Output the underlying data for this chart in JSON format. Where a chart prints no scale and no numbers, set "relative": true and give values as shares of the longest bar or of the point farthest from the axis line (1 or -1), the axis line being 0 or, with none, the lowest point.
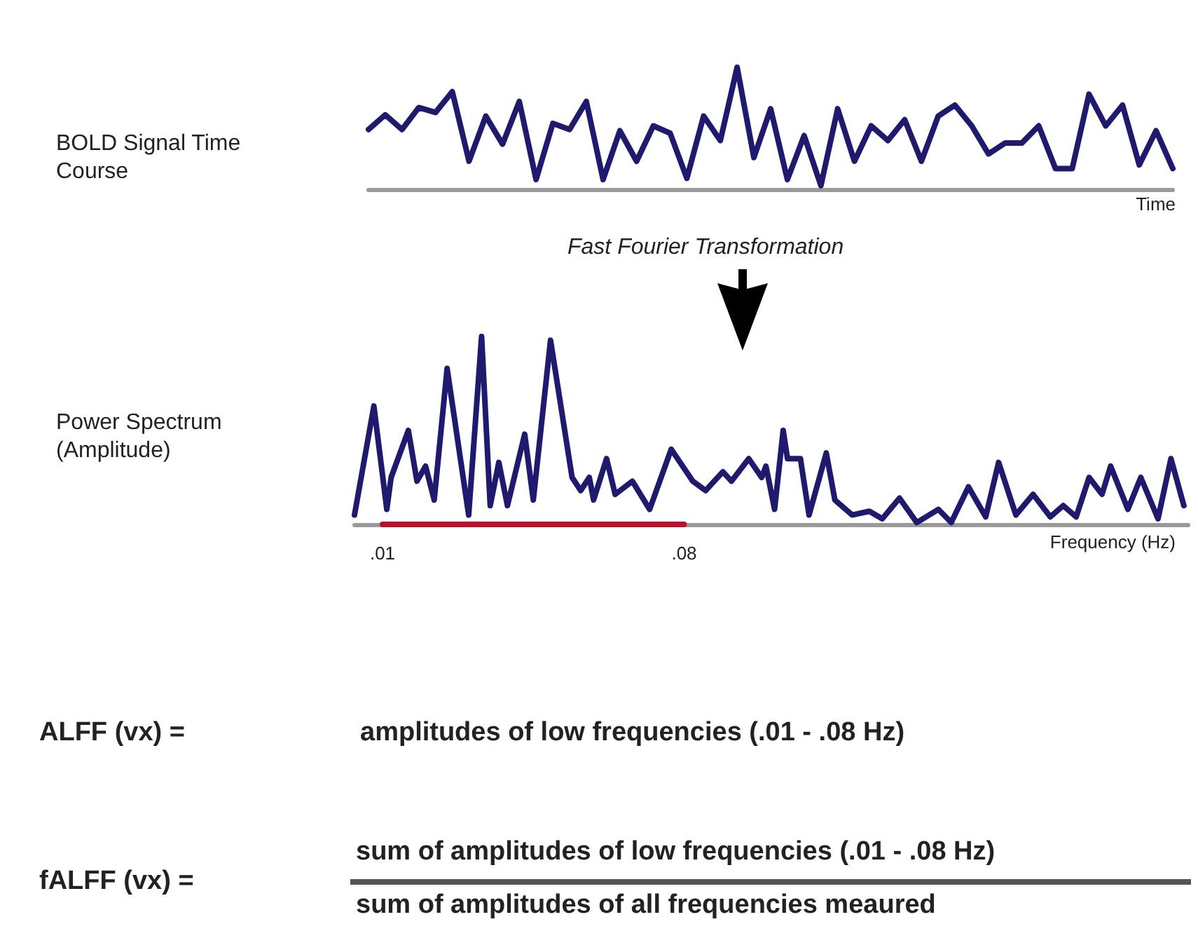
{
  "chart_data": [
    {
      "type": "line",
      "relative": true,
      "ylabel": "BOLD Signal Time Course",
      "xlabel": "Time",
      "categories": [
        null,
        null,
        null,
        null,
        null,
        null,
        null,
        null,
        null,
        null,
        null,
        null,
        null,
        null,
        null,
        null,
        null,
        null,
        null,
        null,
        null,
        null,
        null,
        null,
        null,
        null,
        null,
        null,
        null,
        null,
        null,
        null,
        null,
        null,
        null,
        null,
        null,
        null,
        null,
        null,
        null,
        null,
        null,
        null,
        null,
        null,
        null,
        null,
        null
      ],
      "series": [
        {
          "color": "#1f1a6e",
          "values": [
            0.49,
            0.61,
            0.49,
            0.67,
            0.63,
            0.8,
            0.23,
            0.6,
            0.37,
            0.72,
            0.08,
            0.54,
            0.49,
            0.72,
            0.08,
            0.48,
            0.23,
            0.52,
            0.46,
            0.09,
            0.6,
            0.4,
            1,
            0.26,
            0.66,
            0.08,
            0.44,
            0.03,
            0.66,
            0.23,
            0.52,
            0.4,
            0.57,
            0.23,
            0.6,
            0.69,
            0.52,
            0.29,
            0.38,
            0.38,
            0.52,
            0.17,
            0.17,
            0.78,
            0.52,
            0.69,
            0.2,
            0.48,
            0.17
          ]
        }
      ]
    },
    {
      "type": "line",
      "relative": true,
      "ylabel": "Power Spectrum (Amplitude)",
      "xlabel": "Frequency (Hz)",
      "annotations": [
        "Fast Fourier Transformation"
      ],
      "xlim": [
        0.0035,
        0.197
      ],
      "xticks": [
        {
          "value": 0.01,
          "label": ".01"
        },
        {
          "value": 0.08,
          "label": ".08"
        }
      ],
      "x": [
        0.0035,
        0.008,
        0.011,
        0.012,
        0.016,
        0.018,
        0.02,
        0.022,
        0.025,
        0.03,
        0.033,
        0.035,
        0.037,
        0.039,
        0.043,
        0.045,
        0.049,
        0.054,
        0.056,
        0.058,
        0.059,
        0.062,
        0.064,
        0.068,
        0.072,
        0.077,
        0.082,
        0.085,
        0.089,
        0.091,
        0.095,
        0.098,
        0.099,
        0.101,
        0.103,
        0.104,
        0.107,
        0.109,
        0.113,
        0.115,
        0.119,
        0.123,
        0.126,
        0.13,
        0.134,
        0.139,
        0.142,
        0.146,
        0.15,
        0.153,
        0.157,
        0.161,
        0.165,
        0.168,
        0.171,
        0.174,
        0.177,
        0.179,
        0.183,
        0.186,
        0.19,
        0.193,
        0.196
      ],
      "series": [
        {
          "type": "line",
          "color": "#b5122e",
          "x": [
            0.01,
            0.08
          ],
          "values": [
            0,
            0
          ]
        },
        {
          "color": "#1f1a6e",
          "values": [
            0.05,
            0.63,
            0.08,
            0.25,
            0.5,
            0.23,
            0.31,
            0.13,
            0.83,
            0.05,
            1,
            0.1,
            0.33,
            0.1,
            0.48,
            0.13,
            0.98,
            0.25,
            0.18,
            0.25,
            0.13,
            0.35,
            0.16,
            0.23,
            0.08,
            0.4,
            0.23,
            0.18,
            0.28,
            0.23,
            0.35,
            0.25,
            0.31,
            0.08,
            0.5,
            0.35,
            0.35,
            0.05,
            0.38,
            0.13,
            0.05,
            0.07,
            0.03,
            0.14,
            0.01,
            0.08,
            0.01,
            0.2,
            0.04,
            0.33,
            0.05,
            0.16,
            0.04,
            0.1,
            0.04,
            0.25,
            0.16,
            0.31,
            0.08,
            0.25,
            0.03,
            0.35,
            0.1
          ]
        }
      ]
    },
    {
      "type": "other",
      "annotations": [
        "ALFF (vx) =",
        "amplitudes of low frequencies (.01 - .08 Hz)",
        "fALFF (vx) =",
        "sum of amplitudes of low frequencies (.01 - .08 Hz)",
        "sum of amplitudes of all frequencies meaured"
      ]
    }
  ]
}
